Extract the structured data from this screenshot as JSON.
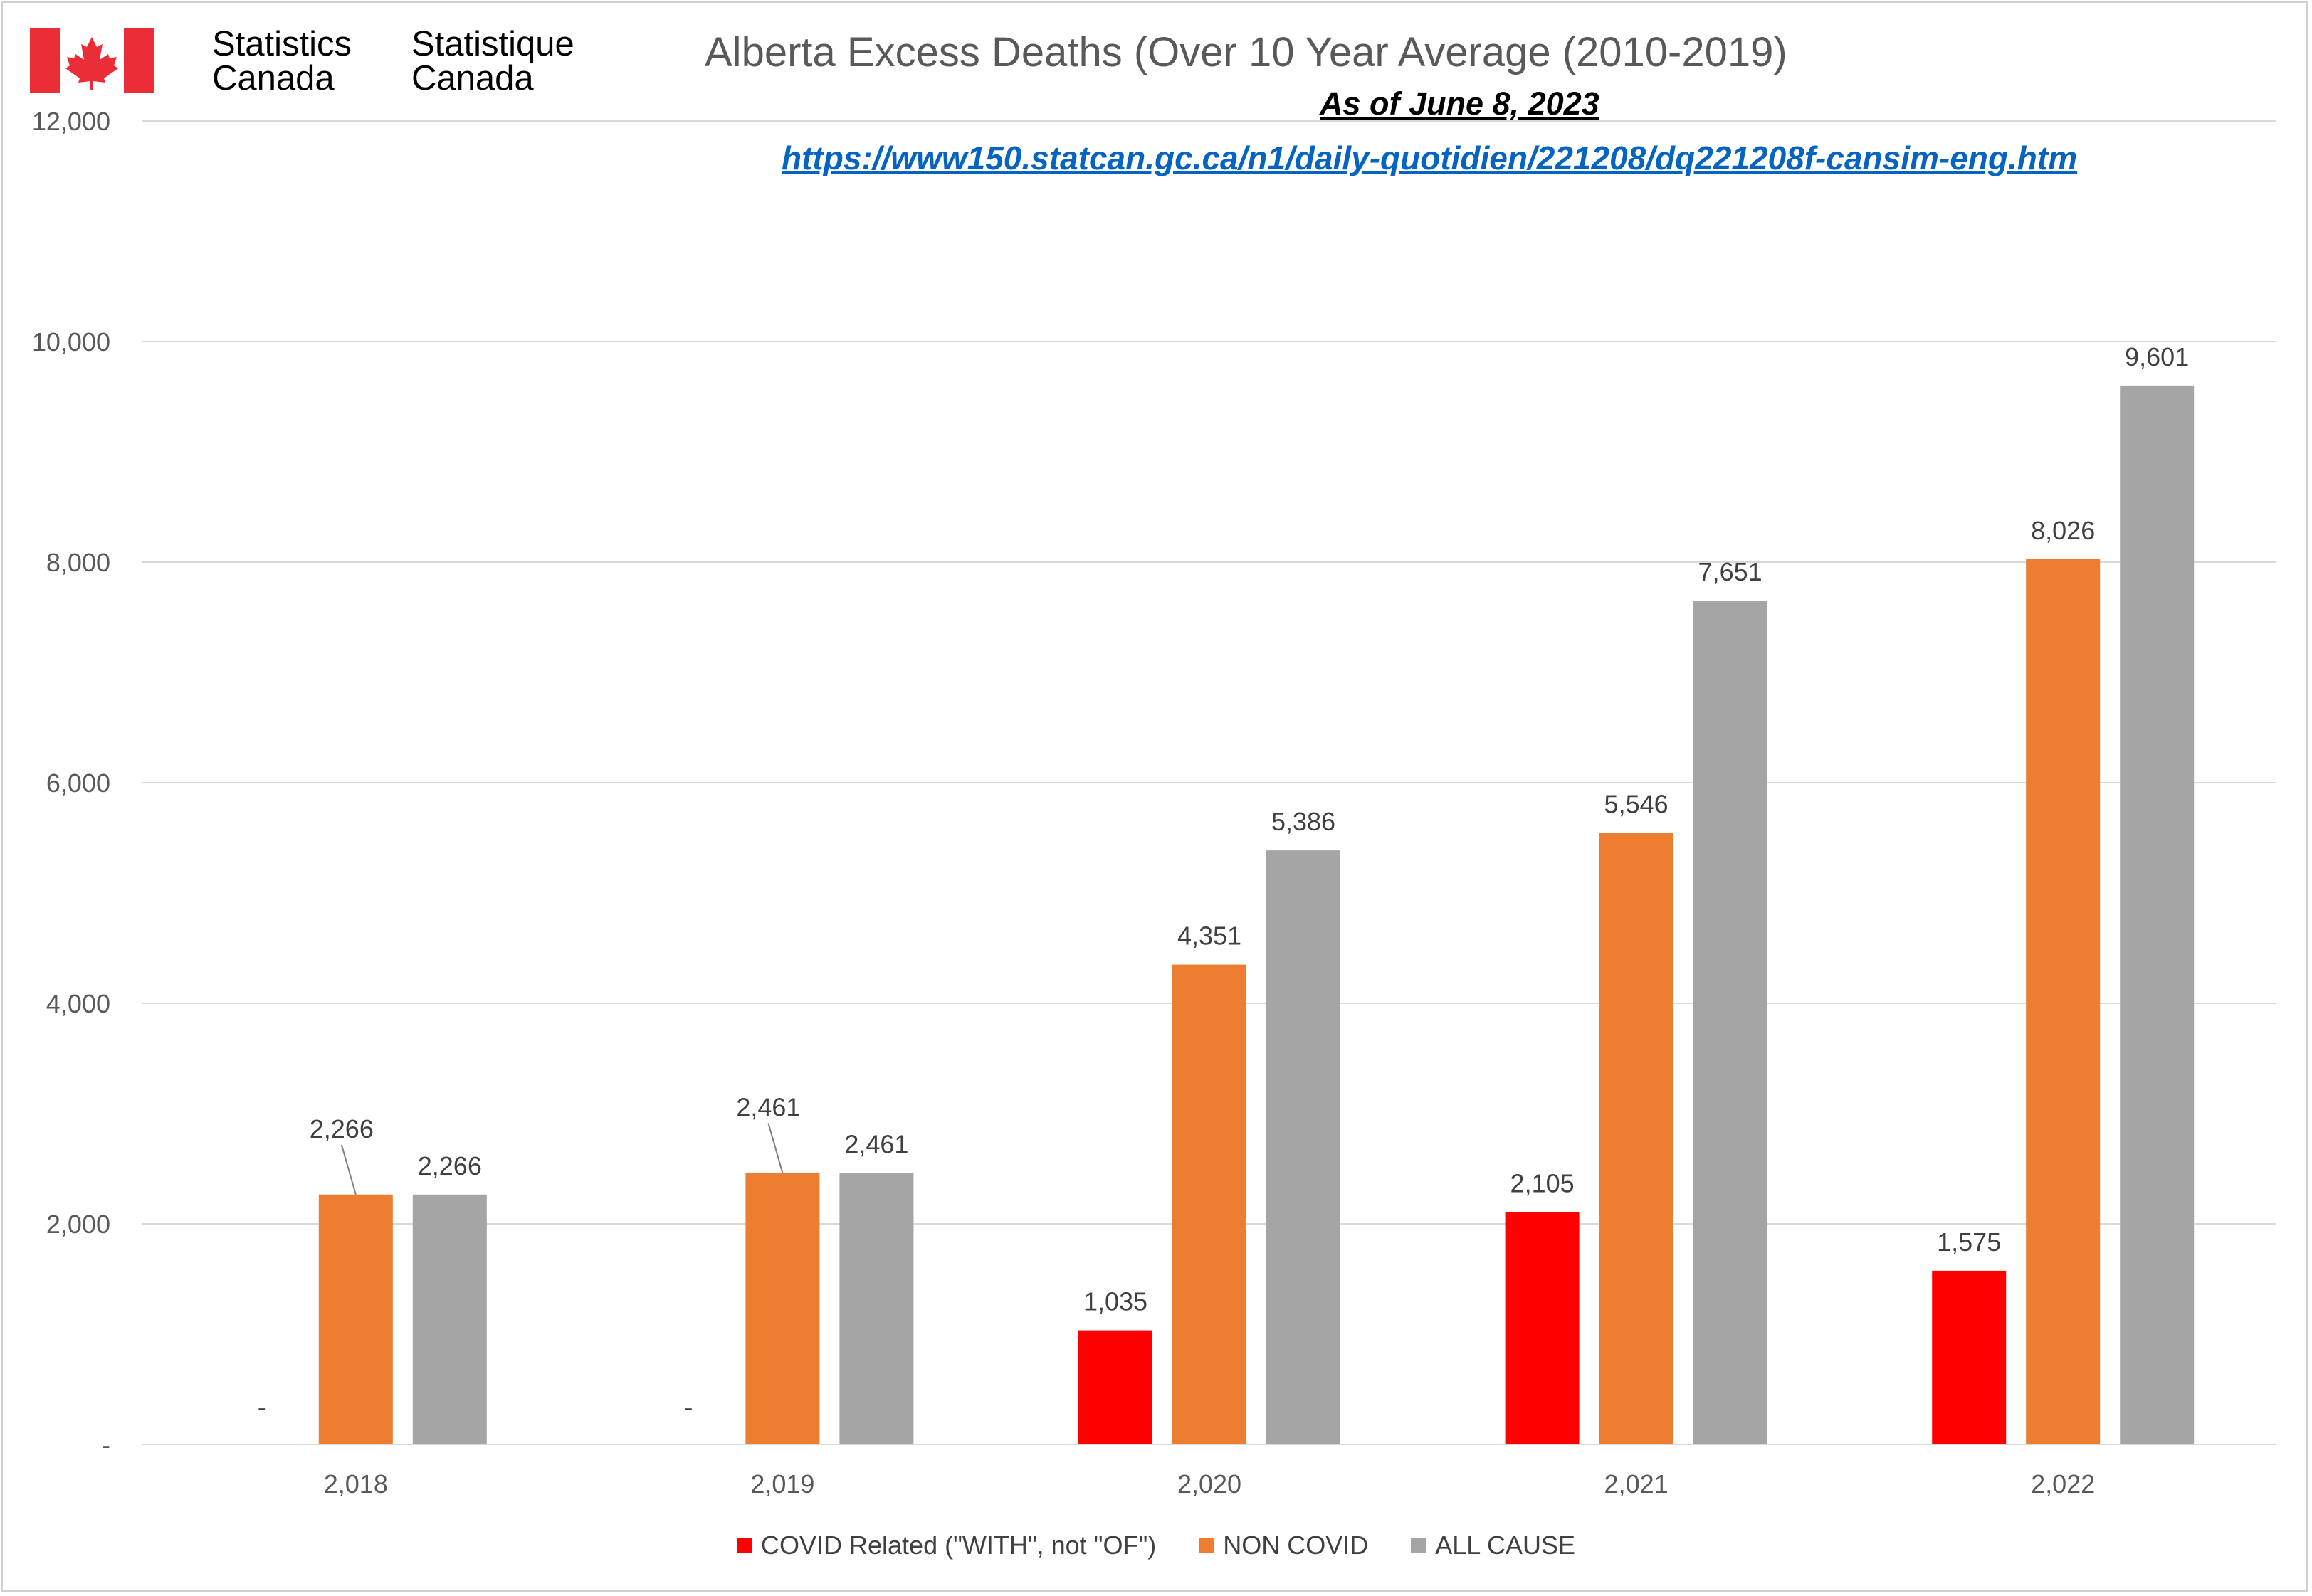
{
  "branding": {
    "name_en_line1": "Statistics",
    "name_en_line2": "Canada",
    "name_fr_line1": "Statistique",
    "name_fr_line2": "Canada",
    "flag_icon": "canada-flag-icon",
    "flag_color": "#eb2d37"
  },
  "header": {
    "title": "Alberta Excess Deaths (Over 10 Year Average (2010-2019)",
    "as_of": "As of June 8, 2023",
    "source_url": "https://www150.statcan.gc.ca/n1/daily-quotidien/221208/dq221208f-cansim-eng.htm"
  },
  "chart_data": {
    "type": "bar",
    "title": "Alberta Excess Deaths (Over 10 Year Average (2010-2019)",
    "xlabel": "",
    "ylabel": "",
    "categories": [
      "2,018",
      "2,019",
      "2,020",
      "2,021",
      "2,022"
    ],
    "ylim": [
      0,
      12000
    ],
    "yticks": [
      0,
      2000,
      4000,
      6000,
      8000,
      10000,
      12000
    ],
    "ytick_labels": [
      "-",
      "2,000",
      "4,000",
      "6,000",
      "8,000",
      "10,000",
      "12,000"
    ],
    "grid": true,
    "legend_position": "bottom",
    "series": [
      {
        "name": "COVID Related (\"WITH\", not \"OF\")",
        "color": "#ff0000",
        "values": [
          0,
          0,
          1035,
          2105,
          1575
        ],
        "labels": [
          "-",
          "-",
          "1,035",
          "2,105",
          "1,575"
        ]
      },
      {
        "name": "NON COVID",
        "color": "#ed7d31",
        "values": [
          2266,
          2461,
          4351,
          5546,
          8026
        ],
        "labels": [
          "2,266",
          "2,461",
          "4,351",
          "5,546",
          "8,026"
        ]
      },
      {
        "name": "ALL CAUSE",
        "color": "#a5a5a5",
        "values": [
          2266,
          2461,
          5386,
          7651,
          9601
        ],
        "labels": [
          "2,266",
          "2,461",
          "5,386",
          "7,651",
          "9,601"
        ]
      }
    ]
  }
}
